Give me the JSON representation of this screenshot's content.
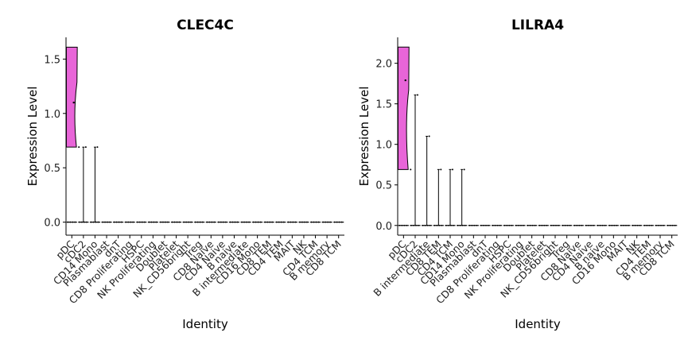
{
  "chart_data": [
    {
      "type": "violin",
      "title": "CLEC4C",
      "xlabel": "Identity",
      "ylabel": "Expression Level",
      "ylim": [
        -0.12,
        1.7
      ],
      "yticks": [
        0.0,
        0.5,
        1.0,
        1.5
      ],
      "yticklabels": [
        "0.0",
        "0.5",
        "1.0",
        "1.5"
      ],
      "fill_color": "#E865D8",
      "categories": [
        "pDC",
        "cDC2",
        "CD14 Mono",
        "Plasmablast",
        "dnT",
        "CD8 Proliferating",
        "HSPC",
        "NK Proliferating",
        "Doublet",
        "Platelet",
        "NK_CD56bright",
        "Treg",
        "CD8 Naive",
        "CD4 Naive",
        "B naive",
        "B intermediate",
        "CD16 Mono",
        "CD8 TEM",
        "CD4 TEM",
        "MAIT",
        "NK",
        "CD4 TCM",
        "B memory",
        "CD8 TCM"
      ],
      "violins": [
        {
          "category": "pDC",
          "min": 0.69,
          "max": 1.61,
          "median": 1.1,
          "filled": true
        },
        {
          "category": "cDC2",
          "min": 0.0,
          "max": 0.69,
          "median": 0.0,
          "filled": false
        },
        {
          "category": "CD14 Mono",
          "min": 0.0,
          "max": 0.69,
          "median": 0.0,
          "filled": false
        }
      ]
    },
    {
      "type": "violin",
      "title": "LILRA4",
      "xlabel": "Identity",
      "ylabel": "Expression Level",
      "ylim": [
        -0.12,
        2.32
      ],
      "yticks": [
        0.0,
        0.5,
        1.0,
        1.5,
        2.0
      ],
      "yticklabels": [
        "0.0",
        "0.5",
        "1.0",
        "1.5",
        "2.0"
      ],
      "fill_color": "#E865D8",
      "categories": [
        "pDC",
        "cDC2",
        "B intermediate",
        "CD8 TEM",
        "CD4 TCM",
        "CD14 Mono",
        "Plasmablast",
        "dnT",
        "CD8 Proliferating",
        "HSPC",
        "NK Proliferating",
        "Doublet",
        "Platelet",
        "NK_CD56bright",
        "Treg",
        "CD8 Naive",
        "CD4 Naive",
        "B naive",
        "CD16 Mono",
        "MAIT",
        "NK",
        "CD4 TEM",
        "B memory",
        "CD8 TCM"
      ],
      "violins": [
        {
          "category": "pDC",
          "min": 0.69,
          "max": 2.2,
          "median": 1.79,
          "filled": true
        },
        {
          "category": "cDC2",
          "min": 0.0,
          "max": 1.61,
          "median": 0.0,
          "filled": false
        },
        {
          "category": "B intermediate",
          "min": 0.0,
          "max": 1.1,
          "median": 0.0,
          "filled": false
        },
        {
          "category": "CD8 TEM",
          "min": 0.0,
          "max": 0.69,
          "median": 0.0,
          "filled": false
        },
        {
          "category": "CD4 TCM",
          "min": 0.0,
          "max": 0.69,
          "median": 0.0,
          "filled": false
        },
        {
          "category": "CD14 Mono",
          "min": 0.0,
          "max": 0.69,
          "median": 0.0,
          "filled": false
        }
      ]
    }
  ]
}
